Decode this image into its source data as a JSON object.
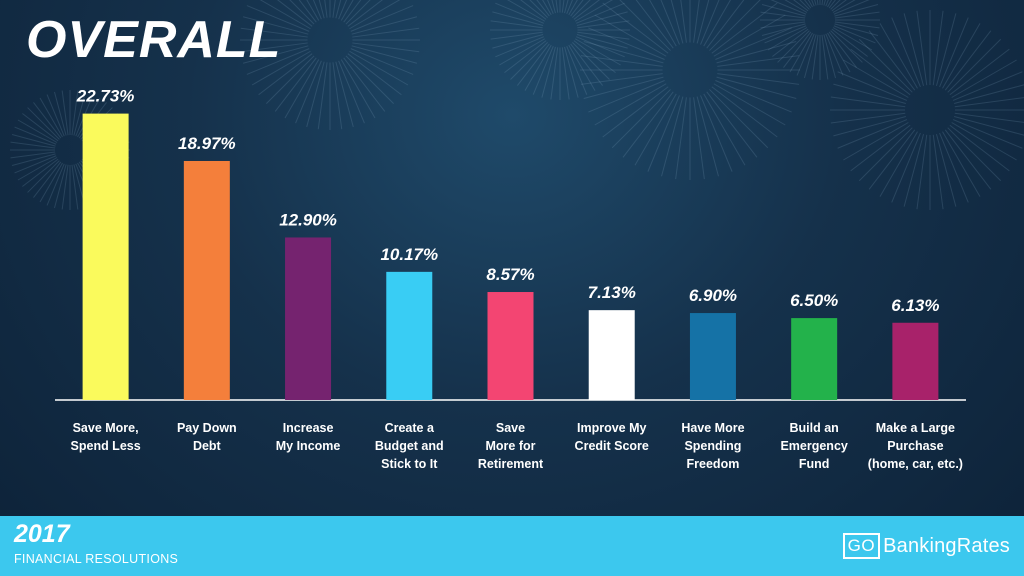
{
  "header": {
    "title": "OVERALL"
  },
  "footer": {
    "year": "2017",
    "subtitle": "FINANCIAL RESOLUTIONS"
  },
  "logo": {
    "go": "GO",
    "brand": "BankingRates"
  },
  "colors": {
    "axis": "#ffffff",
    "footer_bg": "#3cc8ee",
    "background": "#15314b"
  },
  "chart_data": {
    "type": "bar",
    "title": "OVERALL",
    "xlabel": "",
    "ylabel": "",
    "ylim": [
      0,
      25
    ],
    "grid": false,
    "categories": [
      [
        "Save More,",
        "Spend Less"
      ],
      [
        "Pay Down",
        "Debt"
      ],
      [
        "Increase",
        "My Income"
      ],
      [
        "Create a",
        "Budget and",
        "Stick to It"
      ],
      [
        "Save",
        "More for",
        "Retirement"
      ],
      [
        "Improve My",
        "Credit Score"
      ],
      [
        "Have More",
        "Spending",
        "Freedom"
      ],
      [
        "Build an",
        "Emergency",
        "Fund"
      ],
      [
        "Make a Large",
        "Purchase",
        "(home, car, etc.)"
      ]
    ],
    "values": [
      22.73,
      18.97,
      12.9,
      10.17,
      8.57,
      7.13,
      6.9,
      6.5,
      6.13
    ],
    "value_labels": [
      "22.73%",
      "18.97%",
      "12.90%",
      "10.17%",
      "8.57%",
      "7.13%",
      "6.90%",
      "6.50%",
      "6.13%"
    ],
    "bar_colors": [
      "#fafa5c",
      "#f47f3b",
      "#75236f",
      "#39cdf4",
      "#f34572",
      "#ffffff",
      "#1572a6",
      "#23b24b",
      "#a8226a"
    ]
  }
}
